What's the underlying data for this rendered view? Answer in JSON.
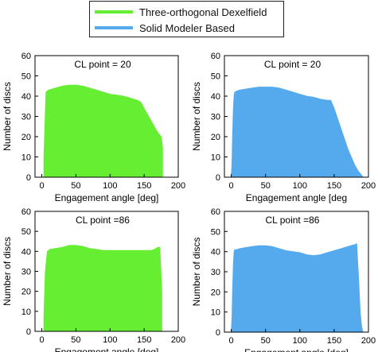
{
  "legend": {
    "items": [
      {
        "label": "Three-orthogonal Dexelfield",
        "color": "#66ee33"
      },
      {
        "label": "Solid Modeler Based",
        "color": "#55aaee"
      }
    ]
  },
  "chart_data": [
    {
      "type": "area",
      "series_name": "Three-orthogonal Dexelfield",
      "color": "#66ee33",
      "annotation": "CL point = 20",
      "xlabel": "Engagement angle [deg]",
      "ylabel": "Number of discs",
      "xlim": [
        -10,
        200
      ],
      "ylim": [
        0,
        60
      ],
      "xticks": [
        0,
        50,
        100,
        150,
        200
      ],
      "yticks": [
        0,
        10,
        20,
        30,
        40,
        50,
        60
      ],
      "x": [
        3,
        6,
        10,
        20,
        30,
        40,
        50,
        60,
        70,
        80,
        90,
        100,
        110,
        120,
        130,
        140,
        145,
        150,
        155,
        160,
        165,
        170,
        175,
        177
      ],
      "y": [
        10,
        42,
        43,
        44,
        45,
        45.5,
        45.5,
        45,
        44,
        43,
        42,
        41,
        40.5,
        40,
        39,
        38,
        37,
        34,
        31,
        28,
        25,
        22,
        20,
        15
      ]
    },
    {
      "type": "area",
      "series_name": "Solid Modeler Based",
      "color": "#55aaee",
      "annotation": "CL point = 20",
      "xlabel": "Engagement angle [deg",
      "ylabel": "Number of discs",
      "xlim": [
        -10,
        200
      ],
      "ylim": [
        0,
        60
      ],
      "xticks": [
        0,
        50,
        100,
        150,
        200
      ],
      "yticks": [
        0,
        10,
        20,
        30,
        40,
        50,
        60
      ],
      "x": [
        0,
        1,
        2,
        3,
        4,
        5,
        8,
        12,
        20,
        30,
        40,
        50,
        60,
        70,
        80,
        90,
        100,
        110,
        120,
        130,
        140,
        145,
        150,
        160,
        170,
        180,
        185,
        190,
        192
      ],
      "y": [
        0,
        8,
        22,
        34,
        40,
        42,
        42.5,
        43,
        43.5,
        44,
        44.5,
        44.5,
        44.5,
        44,
        43,
        42,
        41,
        40,
        39.5,
        38.5,
        38,
        38,
        34,
        24,
        14,
        6,
        3,
        1,
        0
      ]
    },
    {
      "type": "area",
      "series_name": "Three-orthogonal Dexelfield",
      "color": "#66ee33",
      "annotation": "CL point =86",
      "xlabel": "Engagement angle [deg]",
      "ylabel": "Number of discs",
      "xlim": [
        -10,
        200
      ],
      "ylim": [
        0,
        60
      ],
      "xticks": [
        0,
        50,
        100,
        150,
        200
      ],
      "yticks": [
        0,
        10,
        20,
        30,
        40,
        50,
        60
      ],
      "x": [
        3,
        5,
        8,
        12,
        20,
        30,
        40,
        50,
        60,
        70,
        80,
        90,
        100,
        110,
        120,
        130,
        140,
        150,
        160,
        165,
        170,
        173,
        176
      ],
      "y": [
        8,
        30,
        40,
        41,
        41.5,
        42,
        43,
        43,
        42.5,
        41.5,
        41,
        40.5,
        40.5,
        40.5,
        40.5,
        40.5,
        40.5,
        40.5,
        40.5,
        41,
        42,
        42,
        20
      ]
    },
    {
      "type": "area",
      "series_name": "Solid Modeler Based",
      "color": "#55aaee",
      "annotation": "CL point =86",
      "xlabel": "Engagement angle [deg]",
      "ylabel": "Number of discs",
      "xlim": [
        -10,
        200
      ],
      "ylim": [
        0,
        60
      ],
      "xticks": [
        0,
        50,
        100,
        150,
        200
      ],
      "yticks": [
        0,
        10,
        20,
        30,
        40,
        50,
        60
      ],
      "x": [
        0,
        1,
        2,
        3,
        4,
        5,
        8,
        12,
        20,
        30,
        40,
        50,
        60,
        70,
        80,
        90,
        100,
        110,
        120,
        130,
        140,
        150,
        160,
        170,
        180,
        183,
        186,
        188,
        190,
        192
      ],
      "y": [
        0,
        8,
        22,
        34,
        40,
        41,
        41,
        41.5,
        42,
        42.5,
        43,
        43,
        42.5,
        41.5,
        40.5,
        40,
        39.5,
        38.5,
        38,
        38.5,
        39.5,
        40.5,
        41.5,
        42.5,
        43.5,
        44,
        25,
        10,
        3,
        0
      ]
    }
  ]
}
